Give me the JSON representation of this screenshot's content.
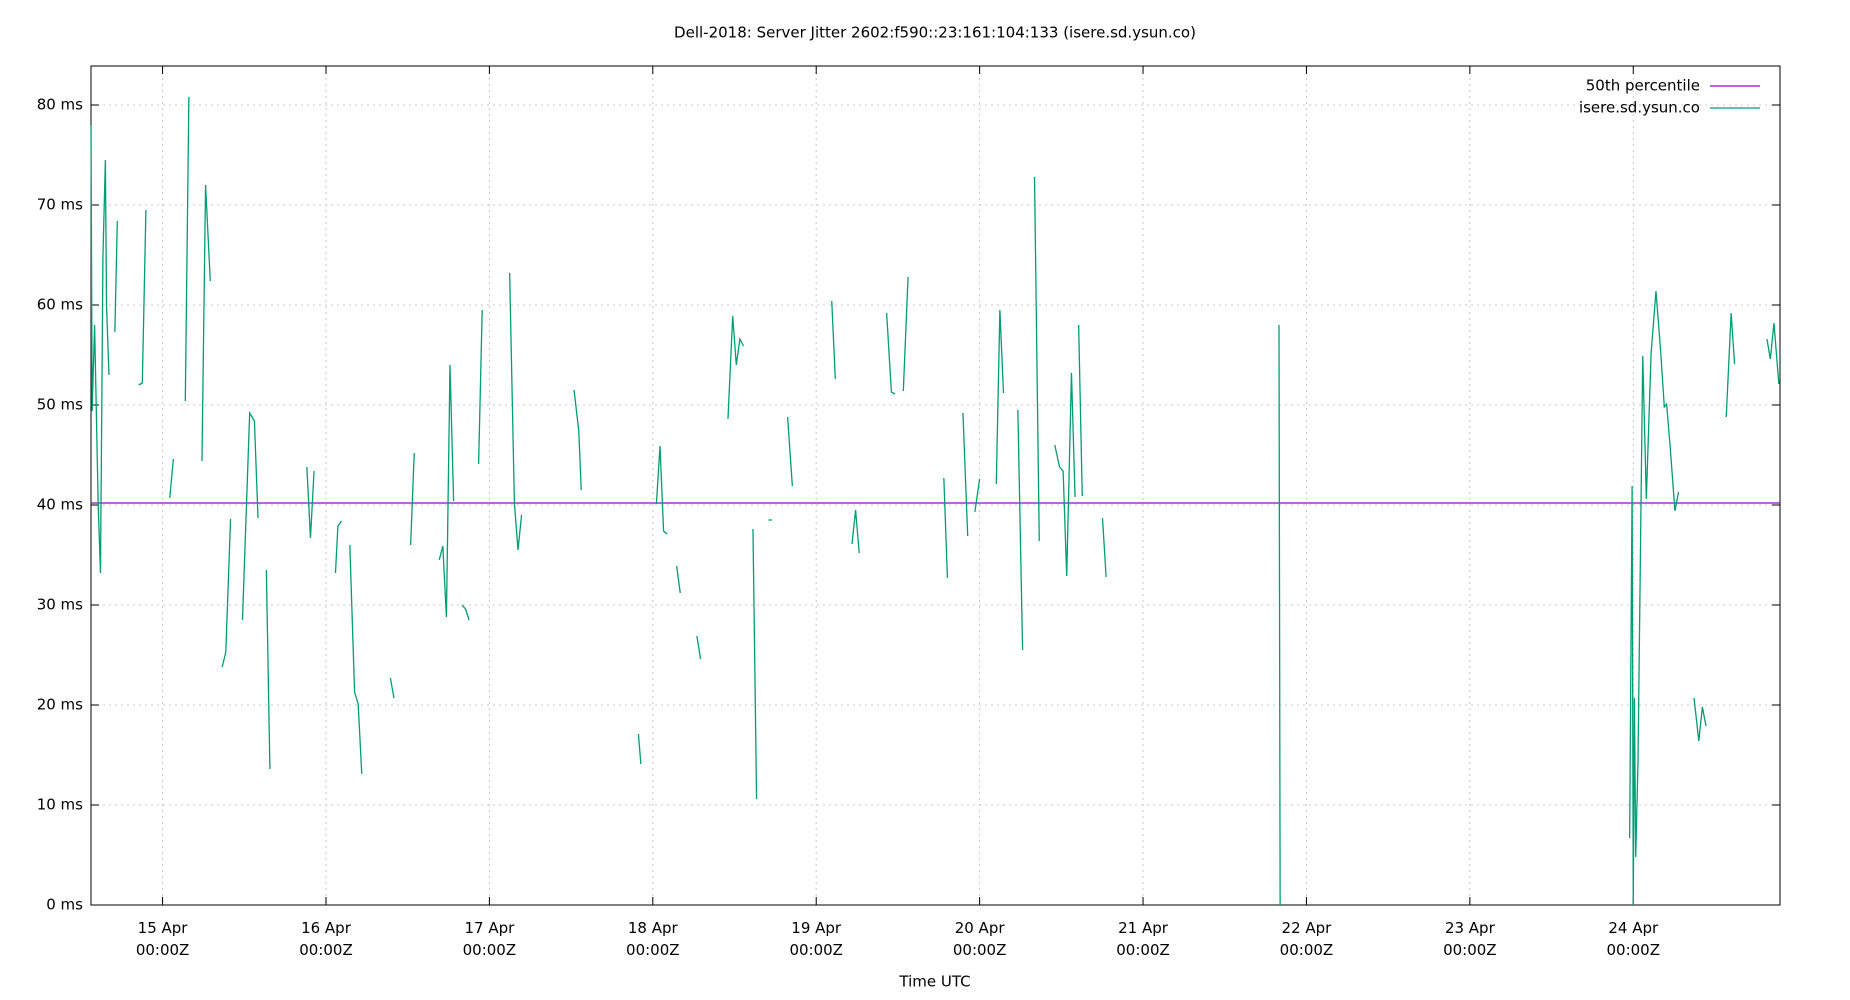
{
  "chart_data": {
    "type": "line",
    "title": "Dell-2018: Server Jitter 2602:f590::23:161:104:133 (isere.sd.ysun.co)",
    "x_label": "Time UTC",
    "xlim": [
      14.562,
      24.898
    ],
    "ylim": [
      0,
      83.9
    ],
    "xticks": [
      {
        "value": 15,
        "label": "15 Apr\n00:00Z"
      },
      {
        "value": 16,
        "label": "16 Apr\n00:00Z"
      },
      {
        "value": 17,
        "label": "17 Apr\n00:00Z"
      },
      {
        "value": 18,
        "label": "18 Apr\n00:00Z"
      },
      {
        "value": 19,
        "label": "19 Apr\n00:00Z"
      },
      {
        "value": 20,
        "label": "20 Apr\n00:00Z"
      },
      {
        "value": 21,
        "label": "21 Apr\n00:00Z"
      },
      {
        "value": 22,
        "label": "22 Apr\n00:00Z"
      },
      {
        "value": 23,
        "label": "23 Apr\n00:00Z"
      },
      {
        "value": 24,
        "label": "24 Apr\n00:00Z"
      }
    ],
    "yticks": [
      {
        "value": 0,
        "label": "0 ms"
      },
      {
        "value": 10,
        "label": "10 ms"
      },
      {
        "value": 20,
        "label": "20 ms"
      },
      {
        "value": 30,
        "label": "30 ms"
      },
      {
        "value": 40,
        "label": "40 ms"
      },
      {
        "value": 50,
        "label": "50 ms"
      },
      {
        "value": 60,
        "label": "60 ms"
      },
      {
        "value": 70,
        "label": "70 ms"
      },
      {
        "value": 80,
        "label": "80 ms"
      }
    ],
    "grid": true,
    "legend": "top-right",
    "series": [
      {
        "name": "50th percentile",
        "color": "#9400d3",
        "x": [
          14.562,
          24.898
        ],
        "values": [
          40.2,
          40.2
        ]
      },
      {
        "name": "isere.sd.ysun.co",
        "color": "#009e73",
        "x": [
          14.562,
          14.569,
          14.584,
          14.606,
          14.62,
          14.635,
          14.65,
          14.657,
          14.672,
          null,
          14.708,
          14.723,
          null,
          14.854,
          14.876,
          14.898,
          null,
          15.044,
          15.066,
          null,
          15.139,
          15.161,
          null,
          15.241,
          15.263,
          15.292,
          null,
          15.365,
          15.387,
          15.416,
          null,
          15.489,
          15.533,
          15.562,
          15.584,
          null,
          15.635,
          15.657,
          null,
          15.883,
          15.905,
          15.927,
          null,
          16.058,
          16.073,
          16.095,
          null,
          16.146,
          16.175,
          16.197,
          16.219,
          null,
          16.394,
          16.416,
          null,
          16.518,
          16.54,
          null,
          16.693,
          16.715,
          16.737,
          16.759,
          16.781,
          null,
          16.832,
          16.854,
          16.876,
          null,
          16.934,
          16.956,
          null,
          17.124,
          17.153,
          17.175,
          17.197,
          null,
          17.518,
          17.547,
          17.562,
          null,
          17.912,
          17.927,
          null,
          18.022,
          18.044,
          18.066,
          18.088,
          null,
          18.146,
          18.168,
          null,
          18.27,
          18.292,
          null,
          18.46,
          18.489,
          18.511,
          18.533,
          18.555,
          null,
          18.613,
          18.635,
          null,
          18.708,
          18.73,
          null,
          18.825,
          18.854,
          null,
          19.095,
          19.117,
          null,
          19.219,
          19.241,
          19.263,
          null,
          19.431,
          19.46,
          19.482,
          null,
          19.533,
          19.562,
          null,
          19.781,
          19.803,
          null,
          19.898,
          19.927,
          null,
          19.971,
          20.0,
          null,
          20.102,
          20.124,
          20.146,
          null,
          20.234,
          20.263,
          null,
          20.336,
          20.365,
          null,
          20.46,
          20.489,
          20.511,
          20.533,
          20.562,
          20.584,
          null,
          20.606,
          20.628,
          null,
          20.752,
          20.774,
          null,
          21.832,
          21.839,
          null,
          23.978,
          23.993,
          24.0,
          24.007,
          24.015,
          24.029,
          24.058,
          24.08,
          24.109,
          24.139,
          24.168,
          24.19,
          24.204,
          24.226,
          24.255,
          24.277,
          null,
          24.372,
          24.401,
          24.423,
          24.445,
          null,
          24.569,
          24.599,
          24.62,
          null,
          24.818,
          24.839,
          24.861,
          24.891
        ],
        "values": [
          78,
          49.4,
          58,
          40,
          33.2,
          64.8,
          74.5,
          60,
          53,
          null,
          57.3,
          68.4,
          null,
          52,
          52.2,
          69.5,
          null,
          40.7,
          44.6,
          null,
          50.4,
          80.8,
          null,
          44.4,
          72,
          62.4,
          null,
          23.8,
          25.3,
          38.6,
          null,
          28.5,
          49.2,
          48.4,
          38.7,
          null,
          33.5,
          13.6,
          null,
          43.8,
          36.7,
          43.4,
          null,
          33.2,
          37.9,
          38.4,
          null,
          36,
          21.3,
          20.1,
          13.1,
          null,
          22.7,
          20.7,
          null,
          36,
          45.2,
          null,
          34.5,
          35.9,
          28.8,
          54,
          40.4,
          null,
          30,
          29.6,
          28.5,
          null,
          44.1,
          59.5,
          null,
          63.2,
          40.2,
          35.5,
          39,
          null,
          51.5,
          47.4,
          41.5,
          null,
          17.1,
          14.1,
          null,
          40.1,
          45.9,
          37.4,
          37.1,
          null,
          33.9,
          31.2,
          null,
          26.9,
          24.6,
          null,
          48.6,
          58.9,
          54,
          56.6,
          55.9,
          null,
          37.6,
          10.6,
          null,
          38.5,
          38.5,
          null,
          48.8,
          41.9,
          null,
          60.4,
          52.6,
          null,
          36.1,
          39.5,
          35.2,
          null,
          59.2,
          51.3,
          51.1,
          null,
          51.4,
          62.8,
          null,
          42.7,
          32.7,
          null,
          49.2,
          36.9,
          null,
          39.3,
          42.6,
          null,
          42.1,
          59.5,
          51.2,
          null,
          49.5,
          25.5,
          null,
          72.8,
          36.4,
          null,
          46,
          43.8,
          43.4,
          32.9,
          53.2,
          40.8,
          null,
          58,
          40.9,
          null,
          38.7,
          32.8,
          null,
          58,
          0,
          null,
          6.7,
          41.9,
          0,
          20.7,
          4.8,
          14.4,
          54.9,
          40.6,
          55.1,
          61.4,
          55.3,
          49.8,
          50.1,
          45.8,
          39.4,
          41.3,
          null,
          20.7,
          16.4,
          19.8,
          17.9,
          null,
          48.8,
          59.2,
          54.1,
          null,
          56.6,
          54.6,
          58.2,
          52.1
        ]
      }
    ]
  }
}
